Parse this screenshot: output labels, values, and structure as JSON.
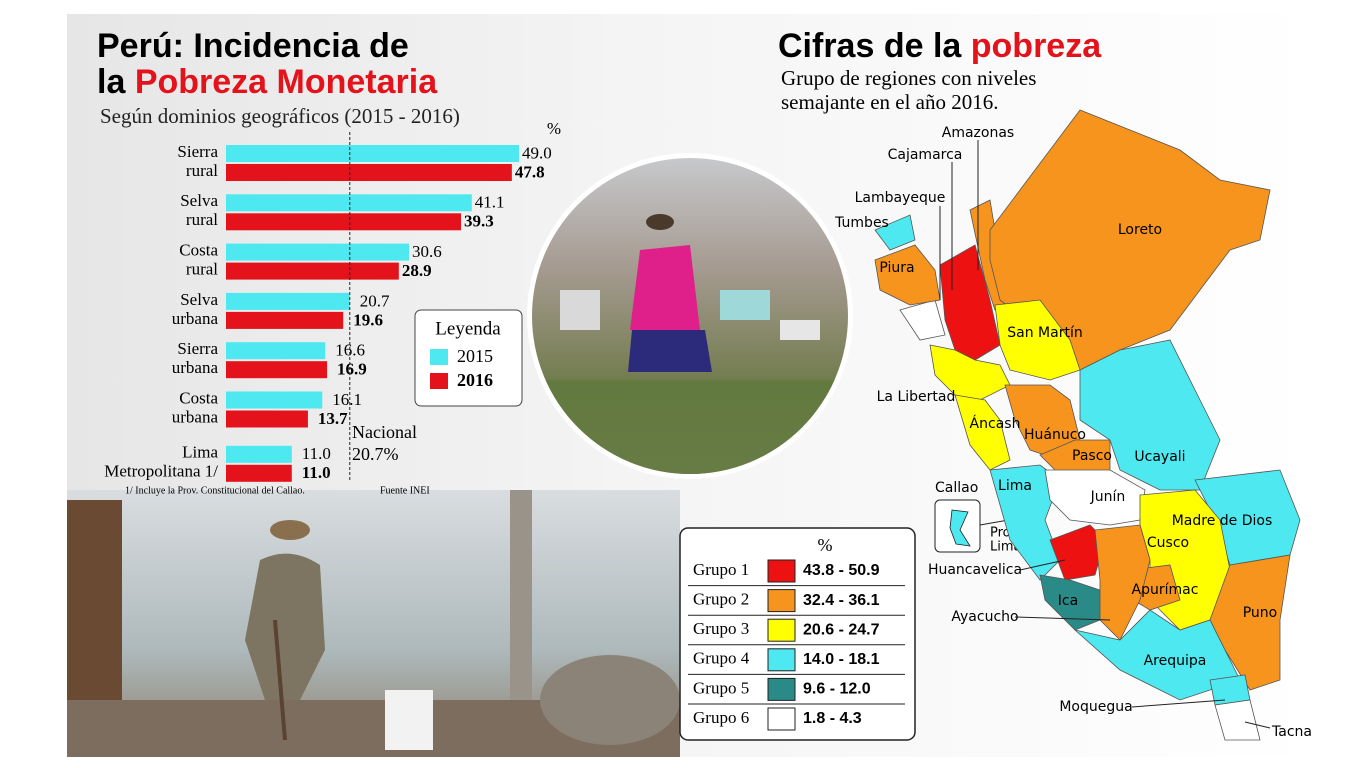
{
  "chart_data": {
    "type": "bar",
    "title": {
      "line1": "Perú: Incidencia de",
      "line2": "la",
      "highlight": "Pobreza Monetaria"
    },
    "subtitle": "Según dominios geográficos (2015 - 2016)",
    "unit": "%",
    "categories": [
      [
        "Sierra",
        "rural"
      ],
      [
        "Selva",
        "rural"
      ],
      [
        "Costa",
        "rural"
      ],
      [
        "Selva",
        "urbana"
      ],
      [
        "Sierra",
        "urbana"
      ],
      [
        "Costa",
        "urbana"
      ],
      [
        "Lima",
        "Metropolitana 1/"
      ]
    ],
    "series": [
      {
        "name": "2015",
        "color": "#4ee8f0",
        "values": [
          49.0,
          41.1,
          30.6,
          20.7,
          16.6,
          16.1,
          11.0
        ],
        "value_labels": [
          "49.0",
          "41.1",
          "30.6",
          "20.7",
          "16.6",
          "16.1",
          "11.0"
        ]
      },
      {
        "name": "2016",
        "color": "#e3121b",
        "values": [
          47.8,
          39.3,
          28.9,
          19.6,
          16.9,
          13.7,
          11.0
        ],
        "value_labels": [
          "47.8",
          "39.3",
          "28.9",
          "19.6",
          "16.9",
          "13.7",
          "11.0"
        ]
      }
    ],
    "legend_title": "Leyenda",
    "reference": {
      "label": "Nacional",
      "value": 20.7,
      "value_label": "20.7%"
    },
    "footnote": "1/ Incluye la Prov. Constitucional del Callao.",
    "source": "Fuente INEI"
  },
  "map": {
    "title": {
      "text": "Cifras de la",
      "highlight": "pobreza"
    },
    "subtitle": [
      "Grupo de regiones con niveles",
      "semajante en el año 2016."
    ],
    "legend_unit": "%",
    "groups": [
      {
        "name": "Grupo 1",
        "range": "43.8 - 50.9",
        "color": "#ee1111"
      },
      {
        "name": "Grupo 2",
        "range": "32.4 - 36.1",
        "color": "#f7941d"
      },
      {
        "name": "Grupo 3",
        "range": "20.6 - 24.7",
        "color": "#ffff00"
      },
      {
        "name": "Grupo 4",
        "range": "14.0 - 18.1",
        "color": "#4ee8f0"
      },
      {
        "name": "Grupo 5",
        "range": "9.6 - 12.0",
        "color": "#2a8a88"
      },
      {
        "name": "Grupo 6",
        "range": "1.8 - 4.3",
        "color": "#ffffff"
      }
    ],
    "regions": [
      {
        "name": "Amazonas",
        "group": 2
      },
      {
        "name": "Cajamarca",
        "group": 1
      },
      {
        "name": "Lambayeque",
        "group": 6
      },
      {
        "name": "Tumbes",
        "group": 4
      },
      {
        "name": "Loreto",
        "group": 2
      },
      {
        "name": "Piura",
        "group": 2
      },
      {
        "name": "San Martín",
        "group": 3
      },
      {
        "name": "La Libertad",
        "group": 3
      },
      {
        "name": "Áncash",
        "group": 3
      },
      {
        "name": "Huánuco",
        "group": 2
      },
      {
        "name": "Pasco",
        "group": 2
      },
      {
        "name": "Ucayali",
        "group": 4
      },
      {
        "name": "Lima",
        "group": 4
      },
      {
        "name": "Junín",
        "group": 6
      },
      {
        "name": "Madre de Dios",
        "group": 4
      },
      {
        "name": "Cusco",
        "group": 3
      },
      {
        "name": "Huancavelica",
        "group": 1
      },
      {
        "name": "Ica",
        "group": 5
      },
      {
        "name": "Apurímac",
        "group": 2
      },
      {
        "name": "Ayacucho",
        "group": 2
      },
      {
        "name": "Puno",
        "group": 2
      },
      {
        "name": "Arequipa",
        "group": 4
      },
      {
        "name": "Moquegua",
        "group": 4
      },
      {
        "name": "Tacna",
        "group": 6
      }
    ],
    "callao": "Callao",
    "prov_lima": [
      "Prov.",
      "Lima"
    ]
  }
}
